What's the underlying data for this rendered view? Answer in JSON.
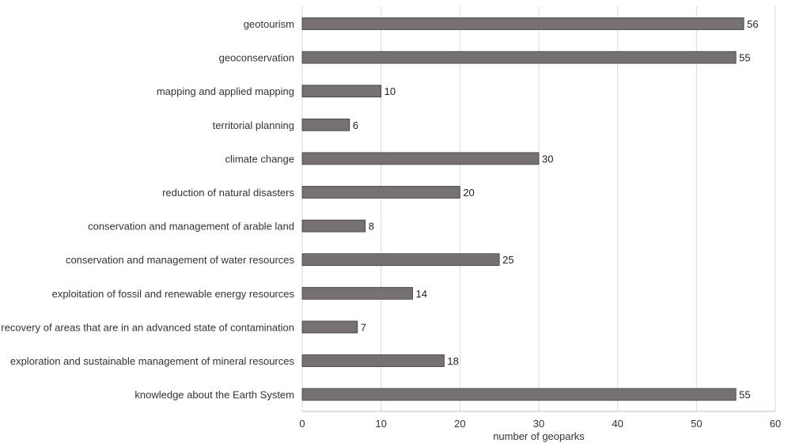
{
  "chart_data": {
    "type": "bar",
    "orientation": "horizontal",
    "title": "",
    "xlabel": "number of geoparks",
    "ylabel": "",
    "xlim": [
      0,
      60
    ],
    "xticks": [
      0,
      10,
      20,
      30,
      40,
      50,
      60
    ],
    "grid": true,
    "legend": "none",
    "categories": [
      "geotourism",
      "geoconservation",
      "mapping and applied mapping",
      "territorial planning",
      "climate change",
      "reduction of natural disasters",
      "conservation and management of arable land",
      "conservation and management of water resources",
      "exploitation of fossil and renewable energy resources",
      "recovery of areas that are in an advanced state of contamination",
      "exploration and sustainable management of mineral resources",
      "knowledge about the Earth System"
    ],
    "values": [
      56,
      55,
      10,
      6,
      30,
      20,
      8,
      25,
      14,
      7,
      18,
      55
    ],
    "colors": {
      "bar_fill": "#767171",
      "bar_stroke": "#3f3c3c",
      "grid": "#d9d9d9",
      "axis": "#bfbfbf"
    }
  }
}
